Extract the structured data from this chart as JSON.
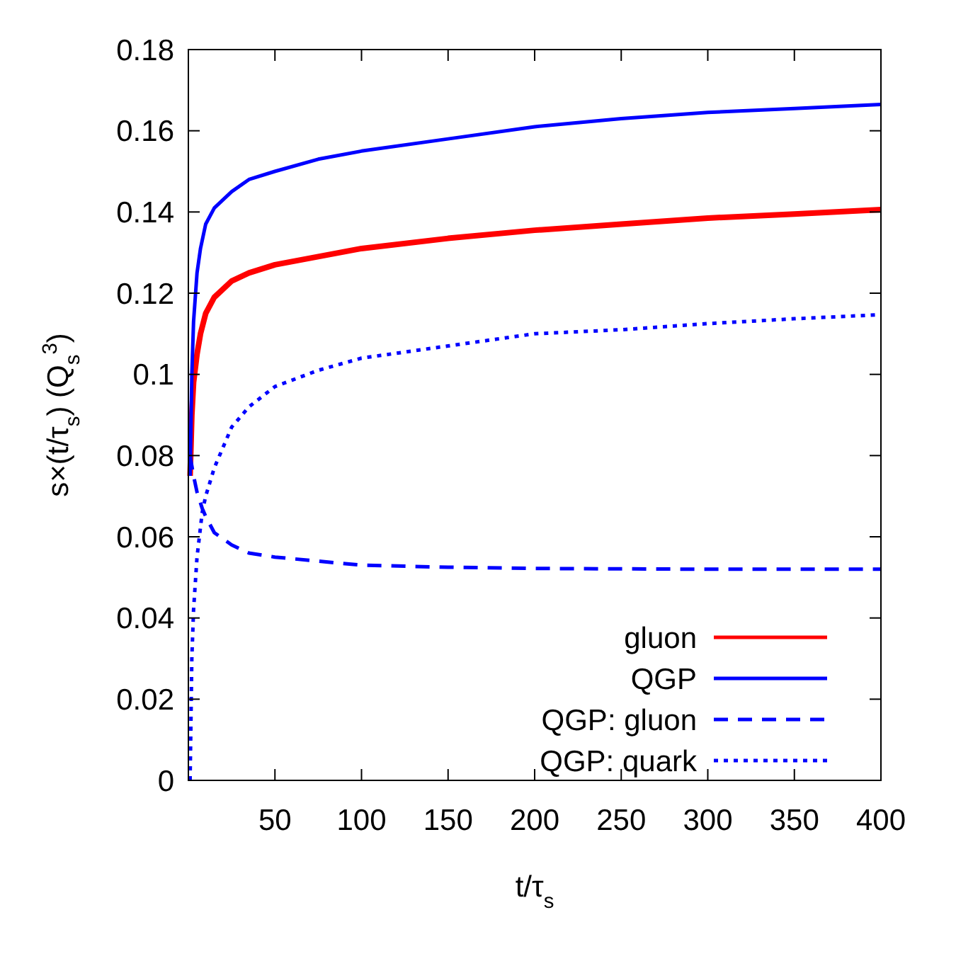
{
  "chart_data": {
    "type": "line",
    "xlabel": "t/τ$_{s}$",
    "ylabel": "s×(t/τ$_{s}$) (Q$_{s}$$^{3}$)",
    "xlim": [
      0,
      400
    ],
    "xticks": [
      50,
      100,
      150,
      200,
      250,
      300,
      350,
      400
    ],
    "ylim": [
      0,
      0.18
    ],
    "yticks": [
      0,
      0.02,
      0.04,
      0.06,
      0.08,
      0.1,
      0.12,
      0.14,
      0.16,
      0.18
    ],
    "legend": "bottom right",
    "grid": false,
    "series": [
      {
        "name": "gluon",
        "color": "#ff0000",
        "line_style": "solid",
        "x": [
          1,
          2,
          3,
          5,
          7,
          10,
          15,
          25,
          35,
          50,
          75,
          100,
          150,
          200,
          250,
          300,
          350,
          400
        ],
        "values": [
          0.075,
          0.09,
          0.098,
          0.105,
          0.11,
          0.115,
          0.119,
          0.123,
          0.125,
          0.127,
          0.129,
          0.131,
          0.1335,
          0.1355,
          0.137,
          0.1385,
          0.1395,
          0.1406
        ]
      },
      {
        "name": "QGP",
        "color": "#0000ff",
        "line_style": "solid",
        "x": [
          1,
          2,
          3,
          5,
          7,
          10,
          15,
          25,
          35,
          50,
          75,
          100,
          150,
          200,
          250,
          300,
          350,
          400
        ],
        "values": [
          0.075,
          0.1,
          0.113,
          0.125,
          0.131,
          0.137,
          0.141,
          0.145,
          0.148,
          0.15,
          0.153,
          0.155,
          0.158,
          0.161,
          0.163,
          0.1645,
          0.1655,
          0.1665
        ]
      },
      {
        "name": "QGP: gluon",
        "color": "#0000ff",
        "line_style": "dashed",
        "x": [
          1,
          3,
          5,
          8,
          10,
          15,
          25,
          35,
          50,
          75,
          100,
          150,
          200,
          300,
          400
        ],
        "values": [
          0.08,
          0.075,
          0.071,
          0.067,
          0.065,
          0.061,
          0.058,
          0.056,
          0.055,
          0.054,
          0.053,
          0.0525,
          0.0522,
          0.052,
          0.052
        ]
      },
      {
        "name": "QGP: quark",
        "color": "#0000ff",
        "line_style": "dotted",
        "x": [
          1,
          2,
          3,
          5,
          8,
          10,
          15,
          25,
          35,
          50,
          75,
          100,
          150,
          200,
          250,
          300,
          350,
          400
        ],
        "values": [
          0,
          0.03,
          0.042,
          0.055,
          0.066,
          0.07,
          0.077,
          0.087,
          0.092,
          0.097,
          0.101,
          0.104,
          0.107,
          0.11,
          0.111,
          0.1125,
          0.1137,
          0.1147
        ]
      }
    ]
  }
}
